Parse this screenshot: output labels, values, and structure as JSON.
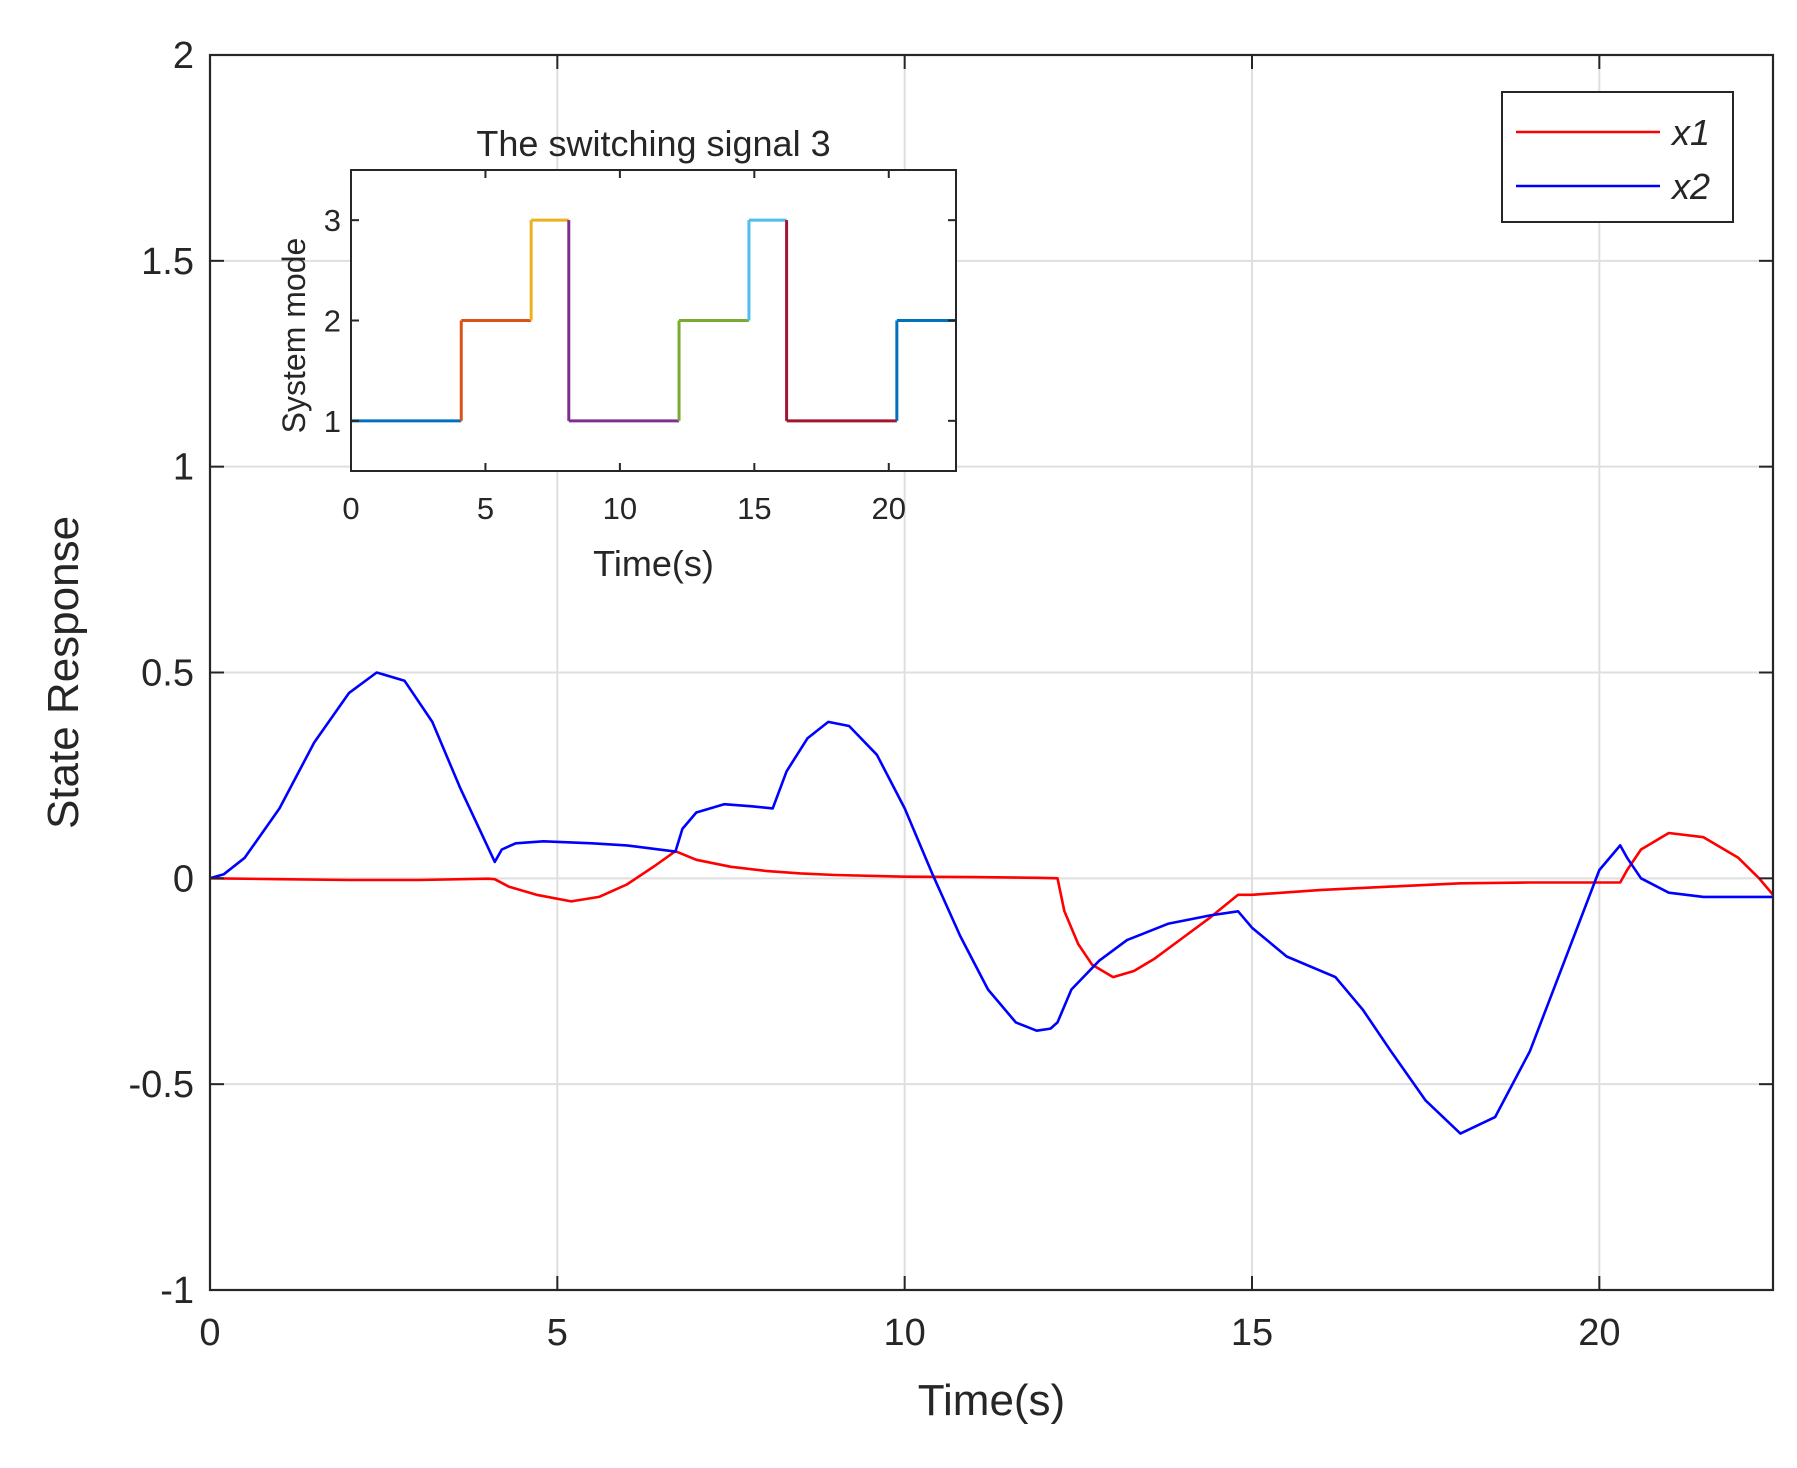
{
  "colors": {
    "x1": "#ff0000",
    "x2": "#0000ff",
    "grid": "#dfdfdf",
    "axis": "#262626",
    "mode_segments": [
      "#0072bd",
      "#d95319",
      "#edb120",
      "#7e2f8e",
      "#77ac30",
      "#4dbeee",
      "#a2142f"
    ]
  },
  "chart_data": [
    {
      "id": "main",
      "type": "line",
      "xlabel": "Time(s)",
      "ylabel": "State Response",
      "xlim": [
        0,
        22.5
      ],
      "ylim": [
        -1,
        2
      ],
      "xticks": [
        0,
        5,
        10,
        15,
        20
      ],
      "xtick_labels": [
        "0",
        "5",
        "10",
        "15",
        "20"
      ],
      "yticks": [
        -1,
        -0.5,
        0,
        0.5,
        1,
        1.5,
        2
      ],
      "ytick_labels": [
        "-1",
        "-0.5",
        "0",
        "0.5",
        "1",
        "1.5",
        "2"
      ],
      "grid": true,
      "legend_position": "top-right",
      "series": [
        {
          "name": "x1",
          "x": [
            0,
            1,
            2,
            3,
            4,
            4.1,
            4.3,
            4.7,
            5.2,
            5.6,
            6.0,
            6.4,
            6.7,
            7.0,
            7.5,
            8.0,
            8.5,
            9.0,
            10.0,
            11.0,
            12.0,
            12.2,
            12.3,
            12.5,
            12.7,
            13.0,
            13.3,
            13.6,
            14.0,
            14.4,
            14.8,
            15.0,
            16.0,
            17.0,
            18.0,
            19.0,
            20.0,
            20.3,
            20.4,
            20.6,
            21.0,
            21.5,
            22.0,
            22.3,
            22.5
          ],
          "values": [
            0.0,
            -0.002,
            -0.004,
            -0.004,
            -0.001,
            -0.002,
            -0.02,
            -0.04,
            -0.056,
            -0.045,
            -0.015,
            0.03,
            0.066,
            0.045,
            0.028,
            0.018,
            0.012,
            0.008,
            0.004,
            0.003,
            0.001,
            0.0,
            -0.08,
            -0.16,
            -0.21,
            -0.24,
            -0.225,
            -0.195,
            -0.145,
            -0.095,
            -0.04,
            -0.04,
            -0.028,
            -0.02,
            -0.012,
            -0.01,
            -0.01,
            -0.01,
            0.02,
            0.07,
            0.11,
            0.1,
            0.05,
            0.0,
            -0.04
          ]
        },
        {
          "name": "x2",
          "x": [
            0,
            0.2,
            0.5,
            1.0,
            1.5,
            2.0,
            2.4,
            2.8,
            3.2,
            3.6,
            4.1,
            4.2,
            4.4,
            4.8,
            5.5,
            6.0,
            6.7,
            6.8,
            7.0,
            7.4,
            7.8,
            8.1,
            8.3,
            8.6,
            8.9,
            9.2,
            9.6,
            10.0,
            10.4,
            10.8,
            11.2,
            11.6,
            11.9,
            12.1,
            12.2,
            12.4,
            12.8,
            13.2,
            13.8,
            14.4,
            14.8,
            15.0,
            15.5,
            16.2,
            16.6,
            17.0,
            17.5,
            18.0,
            18.5,
            19.0,
            19.5,
            20.0,
            20.3,
            20.4,
            20.6,
            21.0,
            21.5,
            22.0,
            22.5
          ],
          "values": [
            0.0,
            0.01,
            0.05,
            0.17,
            0.33,
            0.45,
            0.5,
            0.48,
            0.38,
            0.22,
            0.04,
            0.07,
            0.085,
            0.09,
            0.085,
            0.08,
            0.065,
            0.12,
            0.16,
            0.18,
            0.175,
            0.17,
            0.26,
            0.34,
            0.38,
            0.37,
            0.3,
            0.17,
            0.01,
            -0.14,
            -0.27,
            -0.35,
            -0.37,
            -0.365,
            -0.35,
            -0.27,
            -0.2,
            -0.15,
            -0.11,
            -0.09,
            -0.08,
            -0.12,
            -0.19,
            -0.24,
            -0.32,
            -0.42,
            -0.54,
            -0.62,
            -0.58,
            -0.42,
            -0.2,
            0.02,
            0.08,
            0.05,
            0.0,
            -0.035,
            -0.045,
            -0.045,
            -0.045
          ]
        }
      ]
    },
    {
      "id": "inset",
      "type": "line",
      "title": "The switching signal 3",
      "xlabel": "Time(s)",
      "ylabel": "System mode",
      "xlim": [
        0,
        22.5
      ],
      "ylim": [
        0.5,
        3.5
      ],
      "xticks": [
        0,
        5,
        10,
        15,
        20
      ],
      "xtick_labels": [
        "0",
        "5",
        "10",
        "15",
        "20"
      ],
      "yticks": [
        1,
        2,
        3
      ],
      "ytick_labels": [
        "1",
        "2",
        "3"
      ],
      "grid": false,
      "segments": [
        {
          "t0": 0,
          "t1": 4.1,
          "mode": 1
        },
        {
          "t0": 4.1,
          "t1": 6.7,
          "mode": 2
        },
        {
          "t0": 6.7,
          "t1": 8.1,
          "mode": 3
        },
        {
          "t0": 8.1,
          "t1": 12.2,
          "mode": 1
        },
        {
          "t0": 12.2,
          "t1": 14.8,
          "mode": 2
        },
        {
          "t0": 14.8,
          "t1": 16.2,
          "mode": 3
        },
        {
          "t0": 16.2,
          "t1": 20.3,
          "mode": 1
        },
        {
          "t0": 20.3,
          "t1": 22.5,
          "mode": 2
        }
      ]
    }
  ]
}
